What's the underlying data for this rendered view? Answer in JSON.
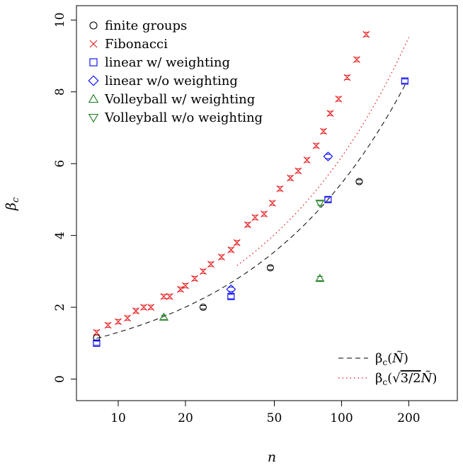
{
  "chart_data": {
    "type": "scatter",
    "x_scale": "log",
    "xlabel": "n",
    "ylabel": "β_c",
    "xlim": [
      6.5,
      330
    ],
    "ylim": [
      -0.6,
      10.4
    ],
    "x_ticks": [
      10,
      20,
      50,
      100,
      200
    ],
    "x_tick_labels": [
      "10",
      "20",
      "50",
      "100",
      "200"
    ],
    "y_ticks": [
      0,
      2,
      4,
      6,
      8,
      10
    ],
    "y_tick_labels": [
      "0",
      "2",
      "4",
      "6",
      "8",
      "10"
    ],
    "grid": false,
    "legend_position": "top-left",
    "series": [
      {
        "name": "finite groups",
        "marker": "circle",
        "color": "#000000",
        "points": [
          {
            "x": 8,
            "y": 1.15,
            "err": 0.08
          },
          {
            "x": 24,
            "y": 2.0,
            "err": 0.05
          },
          {
            "x": 48,
            "y": 3.1,
            "err": 0.05
          },
          {
            "x": 120,
            "y": 5.5,
            "err": 0.05
          }
        ]
      },
      {
        "name": "Fibonacci",
        "marker": "x",
        "color": "#e41a1c",
        "points": [
          {
            "x": 8,
            "y": 1.3
          },
          {
            "x": 9,
            "y": 1.5
          },
          {
            "x": 10,
            "y": 1.6
          },
          {
            "x": 11,
            "y": 1.7
          },
          {
            "x": 12,
            "y": 1.9
          },
          {
            "x": 13,
            "y": 2.0
          },
          {
            "x": 14,
            "y": 2.0
          },
          {
            "x": 16,
            "y": 2.3
          },
          {
            "x": 17,
            "y": 2.3
          },
          {
            "x": 19,
            "y": 2.5
          },
          {
            "x": 20,
            "y": 2.6
          },
          {
            "x": 22,
            "y": 2.8
          },
          {
            "x": 24,
            "y": 3.0
          },
          {
            "x": 26,
            "y": 3.2
          },
          {
            "x": 29,
            "y": 3.4
          },
          {
            "x": 32,
            "y": 3.6
          },
          {
            "x": 34,
            "y": 3.8
          },
          {
            "x": 38,
            "y": 4.3
          },
          {
            "x": 41,
            "y": 4.5
          },
          {
            "x": 45,
            "y": 4.6
          },
          {
            "x": 49,
            "y": 4.9
          },
          {
            "x": 53,
            "y": 5.3
          },
          {
            "x": 59,
            "y": 5.6
          },
          {
            "x": 64,
            "y": 5.8
          },
          {
            "x": 70,
            "y": 6.1
          },
          {
            "x": 77,
            "y": 6.5
          },
          {
            "x": 83,
            "y": 6.9
          },
          {
            "x": 89,
            "y": 7.4
          },
          {
            "x": 97,
            "y": 7.8
          },
          {
            "x": 106,
            "y": 8.4
          },
          {
            "x": 117,
            "y": 8.9
          },
          {
            "x": 129,
            "y": 9.6
          }
        ]
      },
      {
        "name": "linear w/ weighting",
        "marker": "square",
        "color": "#0000ff",
        "points": [
          {
            "x": 8,
            "y": 1.0
          },
          {
            "x": 32,
            "y": 2.3
          },
          {
            "x": 87,
            "y": 5.0
          },
          {
            "x": 192,
            "y": 8.3
          }
        ]
      },
      {
        "name": "linear w/o weighting",
        "marker": "diamond",
        "color": "#0000ff",
        "points": [
          {
            "x": 32,
            "y": 2.5
          },
          {
            "x": 87,
            "y": 6.2
          }
        ]
      },
      {
        "name": "Volleyball w/ weighting",
        "marker": "triangle-up",
        "color": "#1a7a1a",
        "points": [
          {
            "x": 16,
            "y": 1.72
          },
          {
            "x": 80,
            "y": 2.8
          }
        ]
      },
      {
        "name": "Volleyball w/o weighting",
        "marker": "triangle-down",
        "color": "#1a7a1a",
        "points": [
          {
            "x": 80,
            "y": 4.9
          }
        ]
      }
    ],
    "fit_lines": [
      {
        "label": "β_c(Ñ)",
        "style": "dashed",
        "color": "#000000",
        "x_range": [
          8,
          195
        ]
      },
      {
        "label": "β_c(√(3/2)Ñ)",
        "style": "dotted",
        "color": "#e41a1c",
        "x_range": [
          34,
          200
        ]
      }
    ]
  }
}
